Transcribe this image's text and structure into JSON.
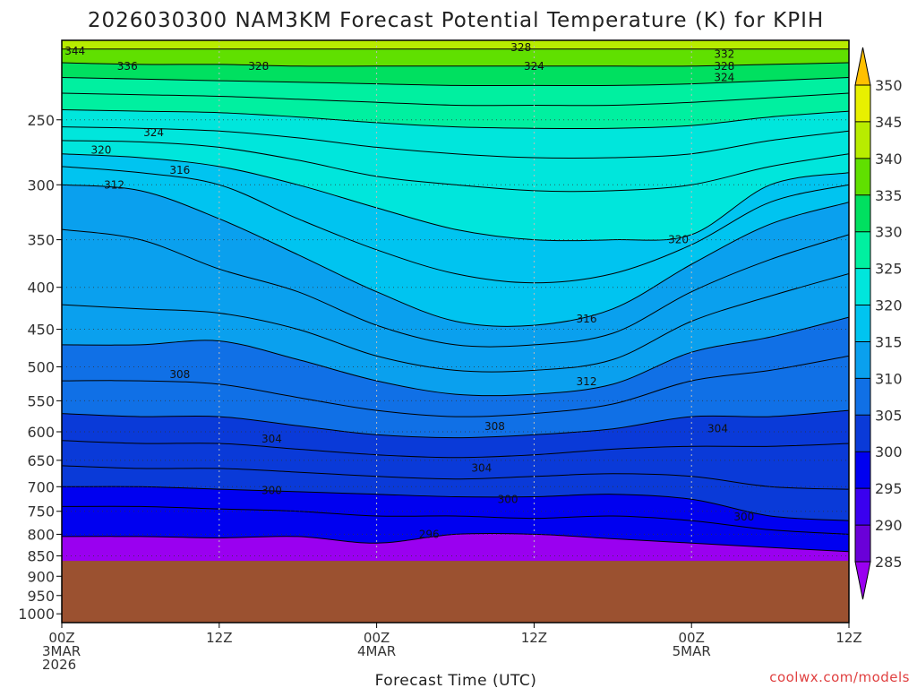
{
  "chart_data": {
    "type": "heatmap",
    "title": "2026030300 NAM3KM Forecast Potential Temperature (K) for KPIH",
    "xlabel": "Forecast Time (UTC)",
    "ylabel": "",
    "credit": "coolwx.com/models",
    "y_axis": {
      "ticks": [
        250,
        300,
        350,
        400,
        450,
        500,
        550,
        600,
        650,
        700,
        750,
        800,
        850,
        900,
        950,
        1000
      ],
      "labels": [
        "250",
        "300",
        "350",
        "400",
        "450",
        "500",
        "550",
        "600",
        "650",
        "700",
        "750",
        "800",
        "850",
        "900",
        "950",
        "1000"
      ],
      "range": [
        1025,
        200
      ],
      "scale": "log-pressure",
      "grid": true
    },
    "x_axis": {
      "range_hours": [
        0,
        60
      ],
      "ticks": [
        {
          "hour": 0,
          "lines": [
            "00Z",
            "3MAR",
            "2026"
          ]
        },
        {
          "hour": 12,
          "lines": [
            "12Z"
          ]
        },
        {
          "hour": 24,
          "lines": [
            "00Z",
            "4MAR"
          ]
        },
        {
          "hour": 36,
          "lines": [
            "12Z"
          ]
        },
        {
          "hour": 48,
          "lines": [
            "00Z",
            "5MAR"
          ]
        },
        {
          "hour": 60,
          "lines": [
            "12Z"
          ]
        }
      ],
      "grid": true
    },
    "colorbar": {
      "levels": [
        285,
        290,
        295,
        300,
        305,
        310,
        315,
        320,
        325,
        330,
        335,
        340,
        345,
        350
      ],
      "labels": [
        "285",
        "290",
        "295",
        "300",
        "305",
        "310",
        "315",
        "320",
        "325",
        "330",
        "335",
        "340",
        "345",
        "350"
      ],
      "colors": [
        "#6a00d8",
        "#3a00ef",
        "#0000f0",
        "#0a3ad8",
        "#1070e6",
        "#0aa0ee",
        "#00c4f0",
        "#00e6dc",
        "#00f0a0",
        "#00e060",
        "#60e000",
        "#b8ec00",
        "#e8f000",
        "#ffe000"
      ],
      "min_color": "#9a00f0",
      "max_color": "#ffc000",
      "extend": "both"
    },
    "terrain": {
      "pressure_top": 862,
      "color": "#9b5130"
    },
    "contours": {
      "levels": [
        296,
        300,
        304,
        308,
        312,
        316,
        320,
        324,
        328,
        332,
        336,
        344
      ],
      "labels": [
        "296",
        "300",
        "304",
        "308",
        "312",
        "316",
        "320",
        "324",
        "328",
        "332",
        "336",
        "344"
      ]
    },
    "isentropes": {
      "x_hours": [
        0,
        6,
        12,
        18,
        24,
        30,
        36,
        42,
        48,
        54,
        60
      ],
      "series": [
        {
          "theta": 295,
          "pressure": [
            805,
            805,
            808,
            805,
            820,
            800,
            800,
            810,
            820,
            830,
            840
          ]
        },
        {
          "theta": 298,
          "pressure": [
            740,
            740,
            745,
            750,
            760,
            760,
            765,
            760,
            770,
            790,
            800
          ]
        },
        {
          "theta": 300,
          "pressure": [
            700,
            700,
            705,
            710,
            715,
            720,
            720,
            715,
            725,
            760,
            770
          ]
        },
        {
          "theta": 302,
          "pressure": [
            660,
            665,
            665,
            672,
            680,
            685,
            680,
            675,
            680,
            700,
            705
          ]
        },
        {
          "theta": 304,
          "pressure": [
            615,
            620,
            620,
            630,
            640,
            645,
            640,
            630,
            625,
            625,
            620
          ]
        },
        {
          "theta": 306,
          "pressure": [
            570,
            575,
            575,
            590,
            605,
            610,
            605,
            595,
            575,
            575,
            565
          ]
        },
        {
          "theta": 308,
          "pressure": [
            520,
            520,
            525,
            545,
            565,
            575,
            570,
            555,
            520,
            505,
            485
          ]
        },
        {
          "theta": 310,
          "pressure": [
            470,
            470,
            465,
            490,
            520,
            540,
            540,
            525,
            480,
            460,
            435
          ]
        },
        {
          "theta": 312,
          "pressure": [
            420,
            425,
            430,
            450,
            485,
            505,
            505,
            490,
            440,
            410,
            385
          ]
        },
        {
          "theta": 314,
          "pressure": [
            340,
            350,
            380,
            405,
            445,
            470,
            470,
            455,
            405,
            370,
            345
          ]
        },
        {
          "theta": 316,
          "pressure": [
            300,
            305,
            330,
            365,
            405,
            440,
            445,
            425,
            375,
            335,
            315
          ]
        },
        {
          "theta": 318,
          "pressure": [
            285,
            290,
            300,
            330,
            360,
            385,
            395,
            385,
            355,
            315,
            300
          ]
        },
        {
          "theta": 320,
          "pressure": [
            275,
            278,
            285,
            300,
            320,
            340,
            350,
            350,
            345,
            300,
            290
          ]
        },
        {
          "theta": 322,
          "pressure": [
            265,
            266,
            270,
            280,
            293,
            300,
            305,
            305,
            300,
            285,
            275
          ]
        },
        {
          "theta": 324,
          "pressure": [
            255,
            256,
            258,
            263,
            270,
            275,
            278,
            278,
            275,
            265,
            258
          ]
        },
        {
          "theta": 326,
          "pressure": [
            243,
            244,
            245,
            248,
            252,
            255,
            256,
            256,
            254,
            248,
            244
          ]
        },
        {
          "theta": 328,
          "pressure": [
            232,
            233,
            234,
            236,
            238,
            240,
            240,
            240,
            238,
            235,
            232
          ]
        },
        {
          "theta": 332,
          "pressure": [
            222,
            223,
            224,
            225,
            226,
            227,
            227,
            227,
            226,
            224,
            222
          ]
        },
        {
          "theta": 336,
          "pressure": [
            213,
            214,
            214,
            215,
            215,
            215,
            215,
            215,
            215,
            214,
            213
          ]
        },
        {
          "theta": 344,
          "pressure": [
            205,
            205,
            205,
            205,
            205,
            205,
            205,
            205,
            205,
            205,
            205
          ]
        }
      ]
    },
    "contour_labels": [
      {
        "text": "344",
        "hour": 1,
        "pressure": 206
      },
      {
        "text": "336",
        "hour": 5,
        "pressure": 215
      },
      {
        "text": "328",
        "hour": 15,
        "pressure": 215
      },
      {
        "text": "328",
        "hour": 35,
        "pressure": 204
      },
      {
        "text": "324",
        "hour": 36,
        "pressure": 215
      },
      {
        "text": "332",
        "hour": 50.5,
        "pressure": 208
      },
      {
        "text": "328",
        "hour": 50.5,
        "pressure": 215
      },
      {
        "text": "324",
        "hour": 50.5,
        "pressure": 222
      },
      {
        "text": "324",
        "hour": 7,
        "pressure": 259
      },
      {
        "text": "320",
        "hour": 3,
        "pressure": 272
      },
      {
        "text": "316",
        "hour": 9,
        "pressure": 288
      },
      {
        "text": "312",
        "hour": 4,
        "pressure": 300
      },
      {
        "text": "320",
        "hour": 47,
        "pressure": 350
      },
      {
        "text": "316",
        "hour": 40,
        "pressure": 437
      },
      {
        "text": "312",
        "hour": 40,
        "pressure": 521
      },
      {
        "text": "308",
        "hour": 9,
        "pressure": 511
      },
      {
        "text": "308",
        "hour": 33,
        "pressure": 591
      },
      {
        "text": "304",
        "hour": 16,
        "pressure": 612
      },
      {
        "text": "304",
        "hour": 50,
        "pressure": 595
      },
      {
        "text": "304",
        "hour": 32,
        "pressure": 664
      },
      {
        "text": "300",
        "hour": 16,
        "pressure": 707
      },
      {
        "text": "300",
        "hour": 34,
        "pressure": 725
      },
      {
        "text": "300",
        "hour": 52,
        "pressure": 762
      },
      {
        "text": "296",
        "hour": 28,
        "pressure": 800
      }
    ]
  }
}
